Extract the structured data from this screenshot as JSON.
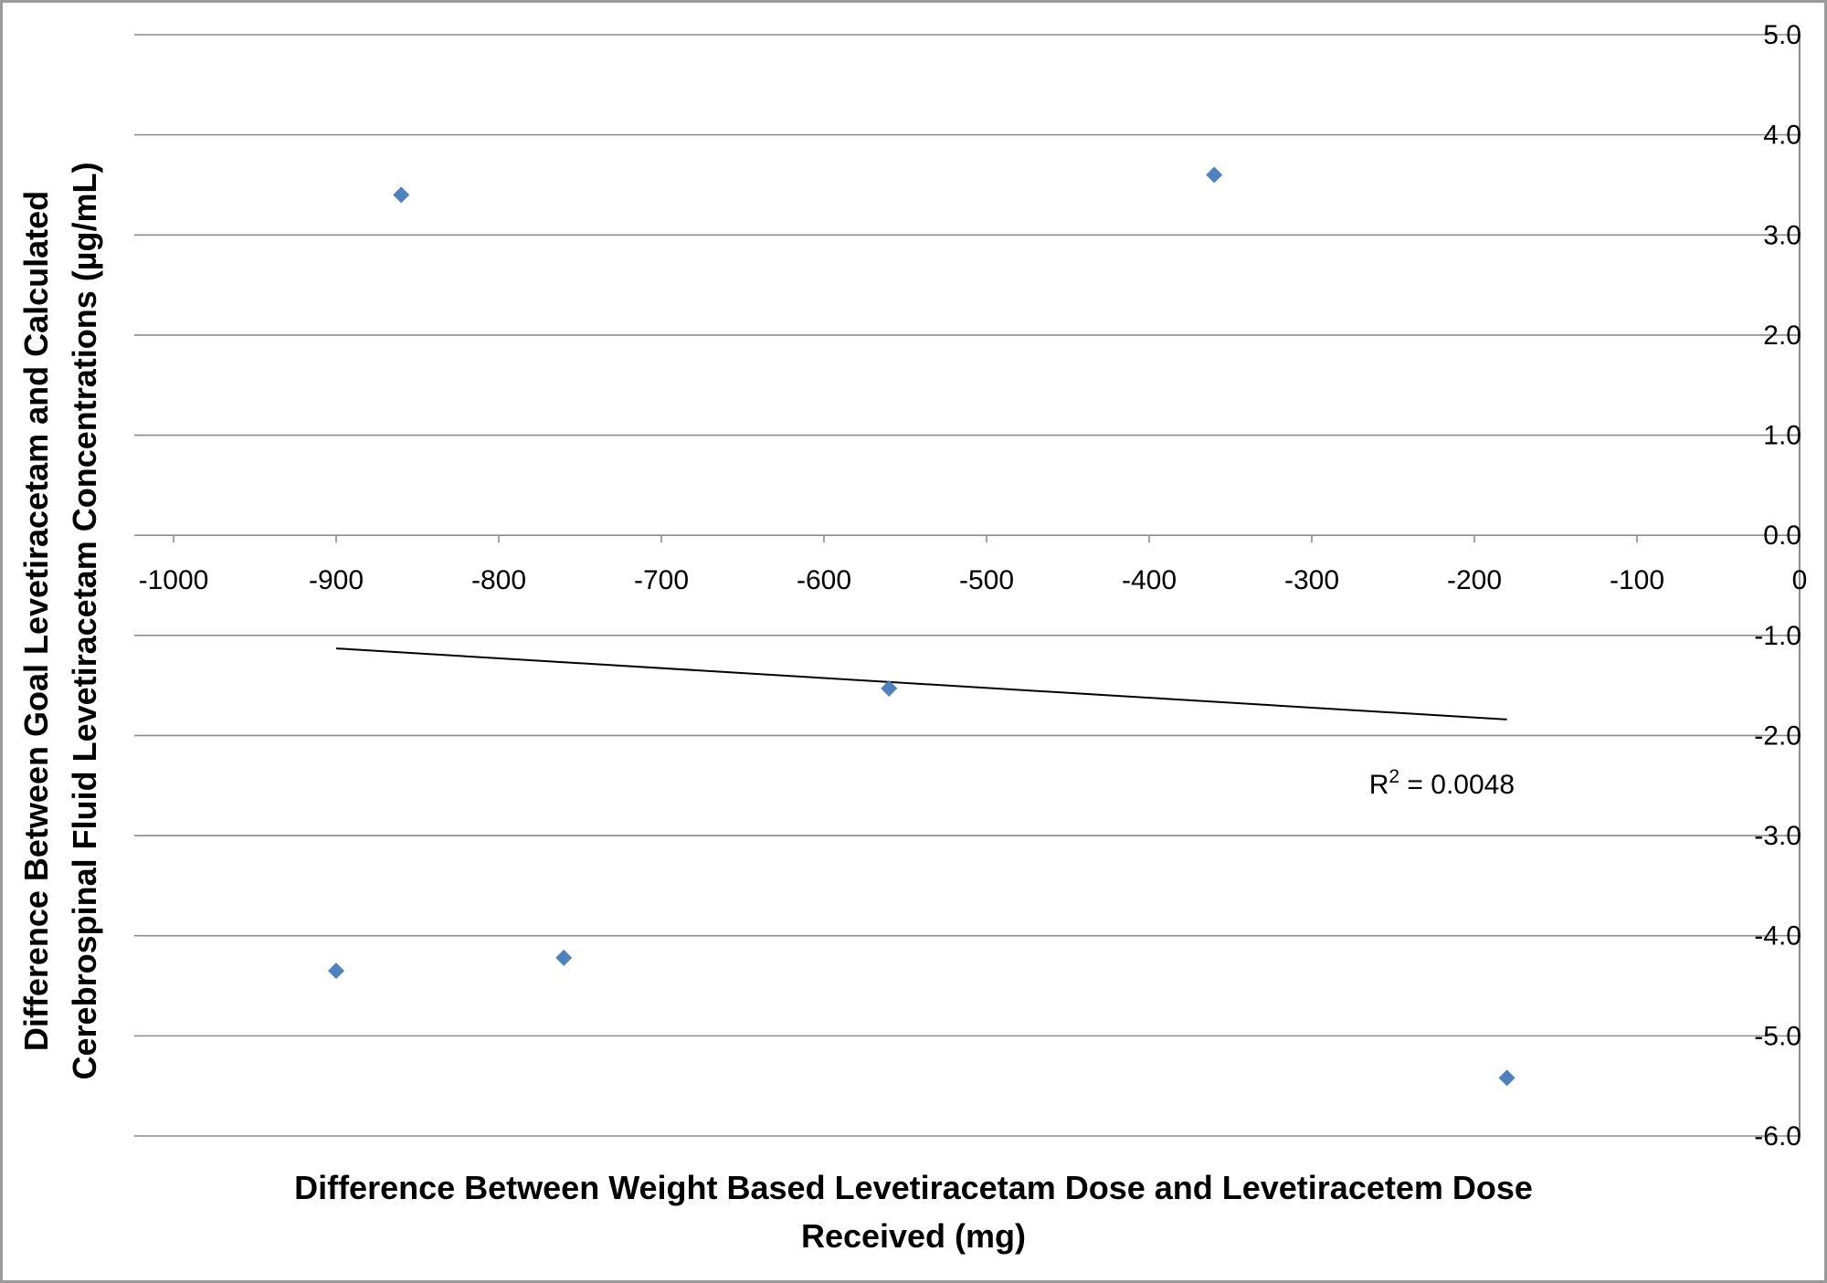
{
  "chart_data": {
    "type": "scatter",
    "xlabel_lines": [
      "Difference Between Weight Based Levetiracetam Dose and Levetiracetem Dose",
      "Received (mg)"
    ],
    "ylabel_lines": [
      "Difference Between Goal Levetiracetam and Calculated",
      "Cerebrospinal Fluid Levetiracetam Concentrations (µg/mL)"
    ],
    "xlim": [
      -1000,
      0
    ],
    "ylim": [
      -6.0,
      5.0
    ],
    "x_ticks": [
      -1000,
      -900,
      -800,
      -700,
      -600,
      -500,
      -400,
      -300,
      -200,
      -100,
      0
    ],
    "x_tick_labels": [
      "-1000",
      "-900",
      "-800",
      "-700",
      "-600",
      "-500",
      "-400",
      "-300",
      "-200",
      "-100",
      "0"
    ],
    "y_ticks": [
      5,
      4,
      3,
      2,
      1,
      0,
      -1,
      -2,
      -3,
      -4,
      -5,
      -6
    ],
    "y_tick_labels": [
      "5.0",
      "4.0",
      "3.0",
      "2.0",
      "1.0",
      "0.0",
      "-1.0",
      "-2.0",
      "-3.0",
      "-4.0",
      "-5.0",
      "-6.0"
    ],
    "grid": true,
    "series": [
      {
        "marker_color": "#4F81BD",
        "points": [
          {
            "x": -860,
            "y": 3.4
          },
          {
            "x": -360,
            "y": 3.6
          },
          {
            "x": -560,
            "y": -1.53
          },
          {
            "x": -900,
            "y": -4.35
          },
          {
            "x": -760,
            "y": -4.22
          },
          {
            "x": -180,
            "y": -5.42
          }
        ]
      }
    ],
    "trendline": {
      "x_start": -900,
      "y_start": -1.13,
      "x_end": -180,
      "y_end": -1.84,
      "r2_label": "R",
      "r2_sup": "2",
      "r2_value": " = 0.0048",
      "r2_x": -220,
      "r2_y": -2.58
    }
  }
}
